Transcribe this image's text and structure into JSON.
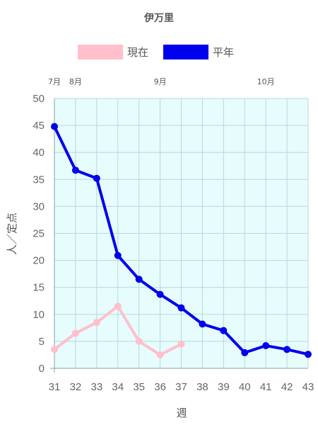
{
  "chart_data": {
    "type": "line",
    "title": "伊万里",
    "xlabel": "週",
    "ylabel": "人／定点",
    "ylim": [
      0,
      50
    ],
    "yticks": [
      0,
      5,
      10,
      15,
      20,
      25,
      30,
      35,
      40,
      45,
      50
    ],
    "x": [
      31,
      32,
      33,
      34,
      35,
      36,
      37,
      38,
      39,
      40,
      41,
      42,
      43
    ],
    "month_labels": [
      {
        "label": "7月",
        "week": 31
      },
      {
        "label": "8月",
        "week": 32
      },
      {
        "label": "9月",
        "week": 36
      },
      {
        "label": "10月",
        "week": 41
      }
    ],
    "legend_position": "top",
    "grid": true,
    "plot_background": "#e6fcfd",
    "grid_color": "#b7d9de",
    "series": [
      {
        "name": "現在",
        "color": "#ffc0cb",
        "values": [
          3.5,
          6.5,
          8.5,
          11.5,
          5.0,
          2.5,
          4.5,
          null,
          null,
          null,
          null,
          null,
          null
        ]
      },
      {
        "name": "平年",
        "color": "#0000ee",
        "values": [
          44.8,
          36.7,
          35.2,
          20.9,
          16.5,
          13.7,
          11.2,
          8.2,
          7.0,
          2.9,
          4.2,
          3.5,
          2.6
        ]
      }
    ]
  }
}
